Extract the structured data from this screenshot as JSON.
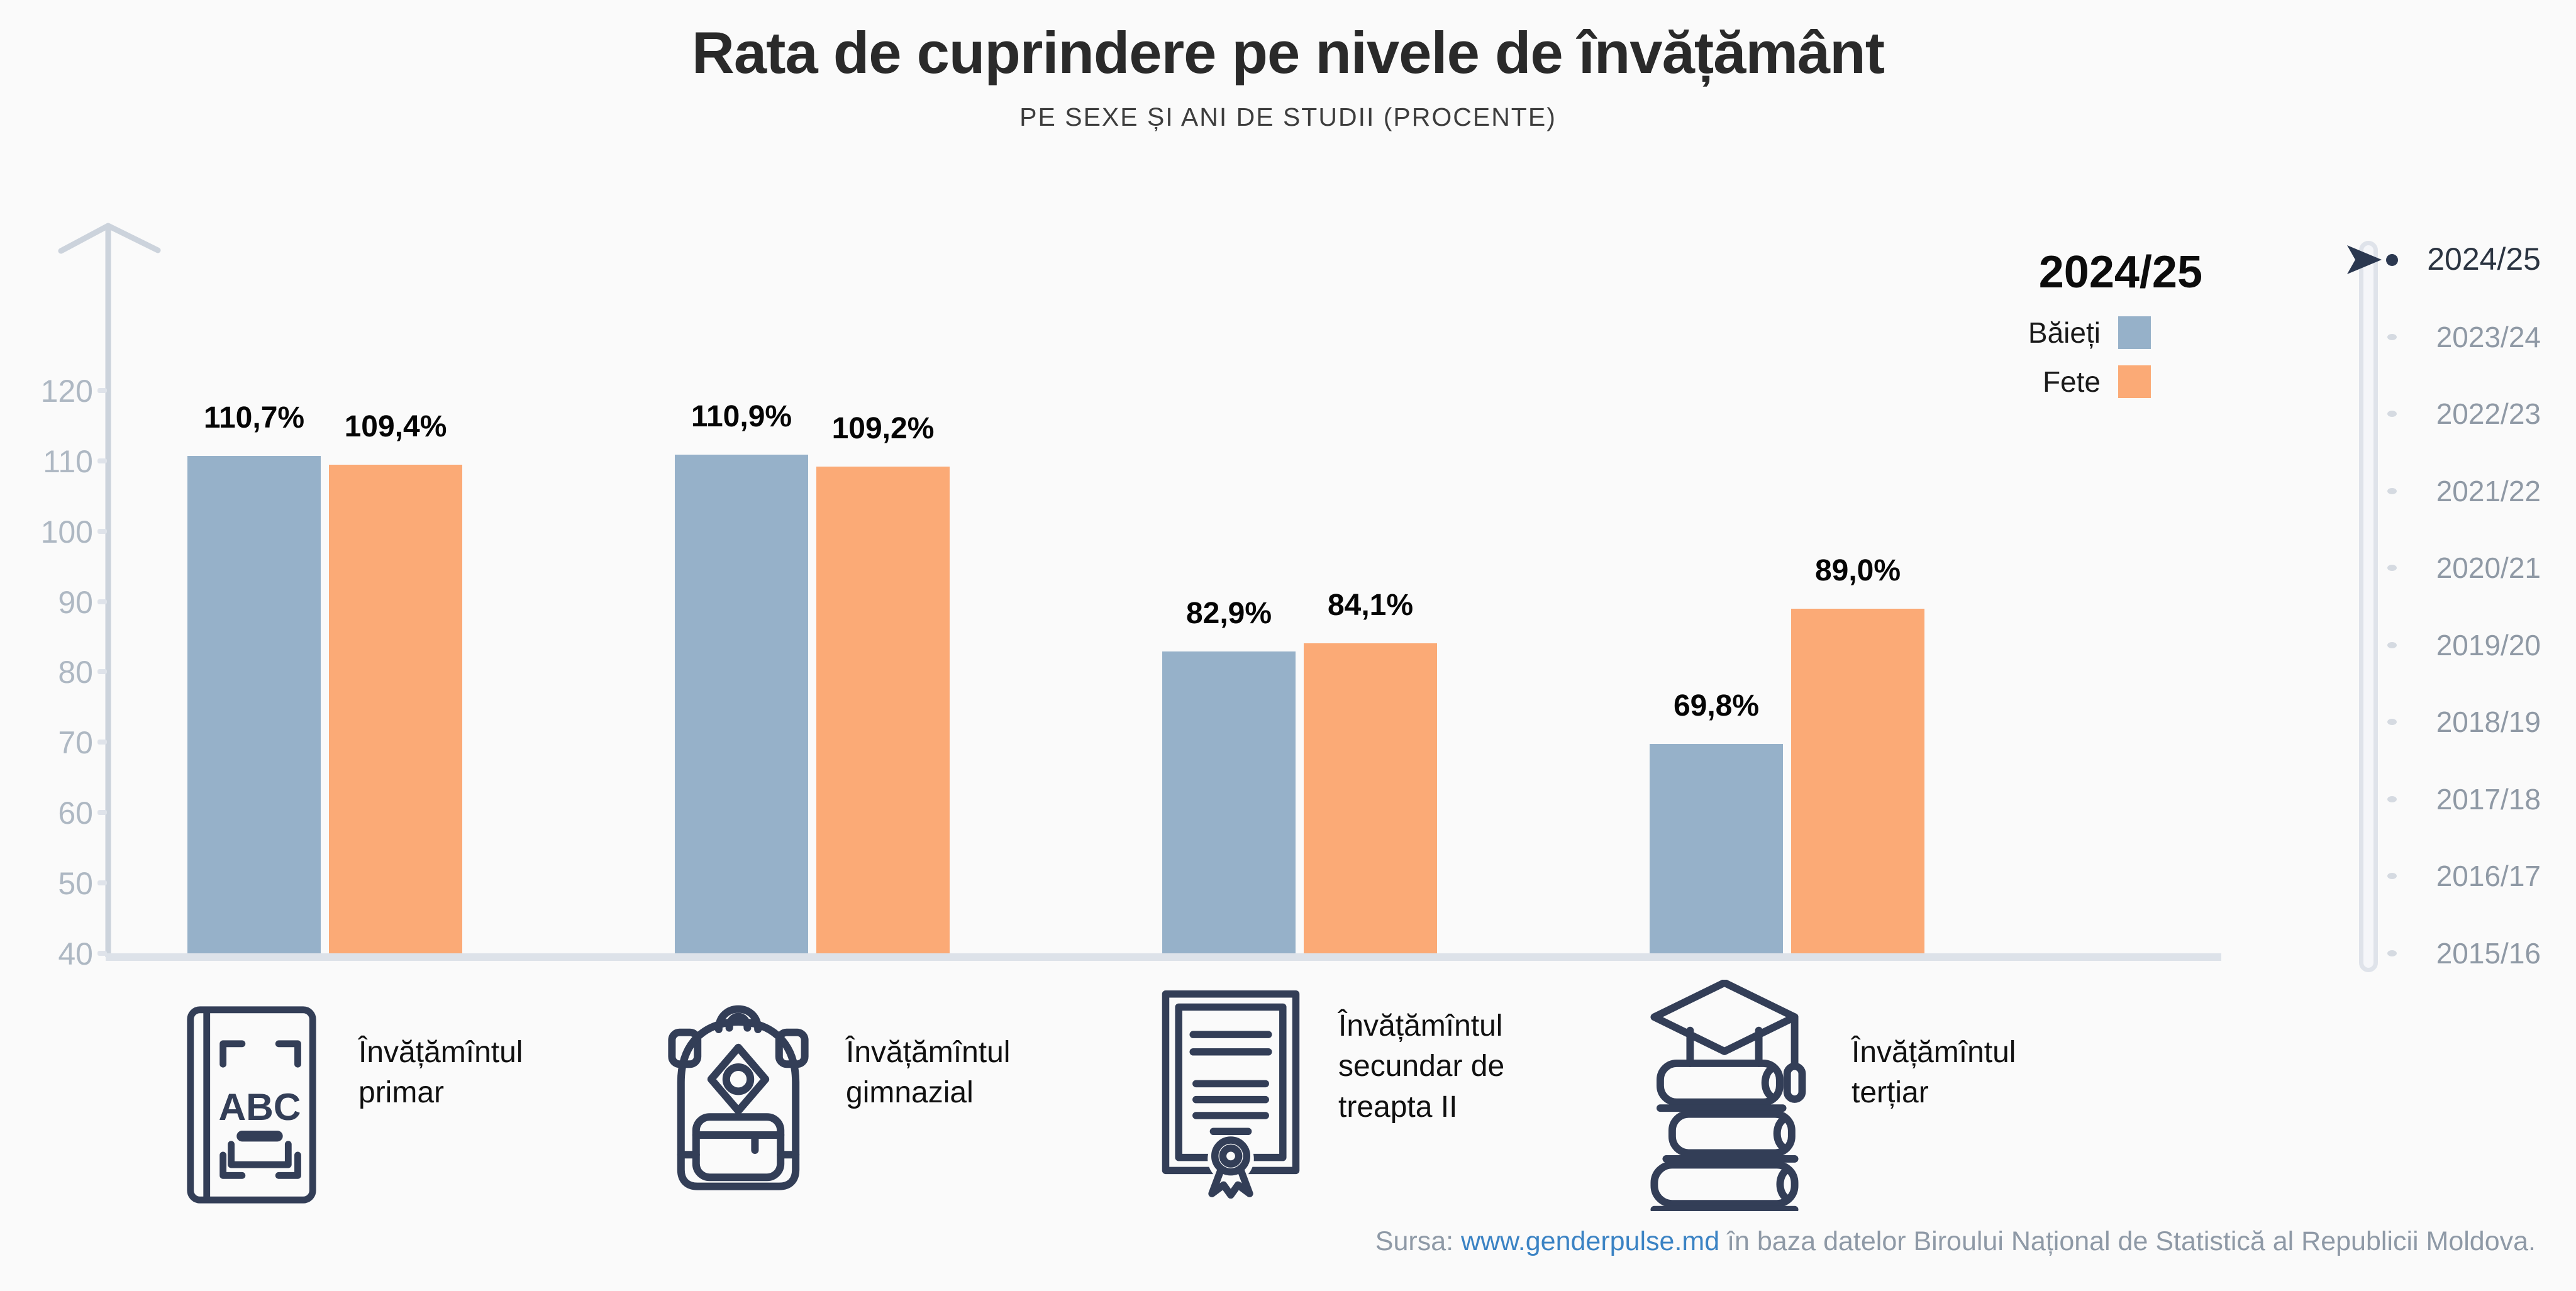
{
  "title": "Rata de cuprindere pe nivele de învățământ",
  "subtitle": "PE SEXE ȘI ANI DE STUDII (PROCENTE)",
  "legend": {
    "year": "2024/25",
    "series": [
      {
        "label": "Băieți",
        "color": "#96b1c9"
      },
      {
        "label": "Fete",
        "color": "#fbaa76"
      }
    ]
  },
  "chart_data": {
    "type": "bar",
    "categories": [
      "Învățămîntul primar",
      "Învățămîntul gimnazial",
      "Învățămîntul secundar de treapta II",
      "Învățămîntul terțiar"
    ],
    "series": [
      {
        "name": "Băieți",
        "color": "#96b1c9",
        "values": [
          110.7,
          110.9,
          82.9,
          69.8
        ],
        "labels": [
          "110,7%",
          "110,9%",
          "82,9%",
          "69,8%"
        ]
      },
      {
        "name": "Fete",
        "color": "#fbaa76",
        "values": [
          109.4,
          109.2,
          84.1,
          89.0
        ],
        "labels": [
          "109,4%",
          "109,2%",
          "84,1%",
          "89,0%"
        ]
      }
    ],
    "title": "Rata de cuprindere pe nivele de învățământ",
    "xlabel": "",
    "ylabel": "",
    "ylim": [
      40,
      120
    ],
    "yticks": [
      120,
      110,
      100,
      90,
      80,
      70,
      60,
      50,
      40
    ],
    "grid": false,
    "legend_position": "top-right"
  },
  "category_items": [
    {
      "label": "Învățămîntul primar",
      "icon": "abc-book-icon"
    },
    {
      "label": "Învățămîntul gimnazial",
      "icon": "backpack-icon"
    },
    {
      "label": "Învățămîntul secundar de treapta II",
      "icon": "certificate-icon"
    },
    {
      "label": "Învățămîntul terțiar",
      "icon": "graduation-books-icon"
    }
  ],
  "timeline": {
    "selected": "2024/25",
    "years": [
      "2024/25",
      "2023/24",
      "2022/23",
      "2021/22",
      "2020/21",
      "2019/20",
      "2018/19",
      "2017/18",
      "2016/17",
      "2015/16"
    ]
  },
  "source": {
    "prefix": "Sursa: ",
    "link": "www.genderpulse.md",
    "suffix": " în baza datelor Biroului Național de Statistică al Republicii Moldova."
  },
  "colors": {
    "background": "#fafafa",
    "boys": "#96b1c9",
    "girls": "#fbaa76",
    "axis": "#ccd3dc",
    "baseline": "#dde2e9",
    "tick_text": "#aeb8c3",
    "icon": "#333e57",
    "timeline_inactive": "#8f99a5",
    "timeline_selected": "#2b3441",
    "timeline_marker": "#2b3850",
    "link": "#3b83c4",
    "source_text": "#8e99a6"
  }
}
